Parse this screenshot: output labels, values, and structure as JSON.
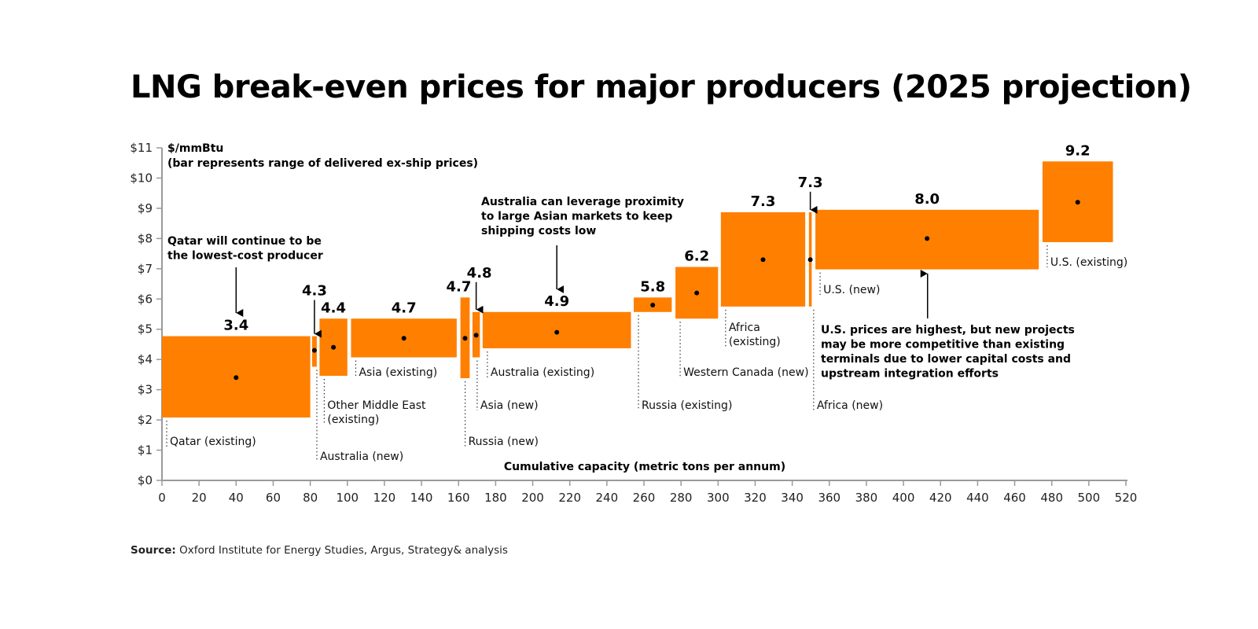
{
  "header": {
    "title": "LNG break-even prices for major producers (2025 projection)"
  },
  "footer": {
    "source_label": "Source:",
    "source_text": " Oxford Institute for Energy Studies, Argus, Strategy& analysis"
  },
  "chart_data": {
    "type": "bar",
    "subtype": "variable-width range bars (supply curve)",
    "title": "LNG break-even prices for major producers (2025 projection)",
    "ylabel": "$/mmBtu",
    "ylabel_note": "(bar represents range of delivered ex-ship prices)",
    "xlabel": "Cumulative capacity (metric tons per annum)",
    "xlim": [
      0,
      520
    ],
    "ylim": [
      0,
      11
    ],
    "xticks": [
      0,
      20,
      40,
      60,
      80,
      100,
      120,
      140,
      160,
      180,
      200,
      220,
      240,
      260,
      280,
      300,
      320,
      340,
      360,
      380,
      400,
      420,
      440,
      460,
      480,
      500,
      520
    ],
    "yticks": [
      0,
      1,
      2,
      3,
      4,
      5,
      6,
      7,
      8,
      9,
      10,
      11
    ],
    "ytick_labels": [
      "$0",
      "$1",
      "$2",
      "$3",
      "$4",
      "$5",
      "$6",
      "$7",
      "$8",
      "$9",
      "$10",
      "$11"
    ],
    "grid": false,
    "bar_color": "#FF7F00",
    "series": [
      {
        "name": "Qatar (existing)",
        "x_start": 0,
        "x_end": 80,
        "low": 2.08,
        "high": 4.77,
        "value": 3.4,
        "label": "3.4"
      },
      {
        "name": "Australia (new)",
        "x_start": 81,
        "x_end": 83.5,
        "low": 3.76,
        "high": 4.77,
        "value": 4.3,
        "label": "4.3"
      },
      {
        "name": "Other Middle East (existing)",
        "x_start": 85,
        "x_end": 100,
        "low": 3.46,
        "high": 5.35,
        "value": 4.4,
        "label": "4.4"
      },
      {
        "name": "Asia (existing)",
        "x_start": 102,
        "x_end": 159,
        "low": 4.07,
        "high": 5.35,
        "value": 4.7,
        "label": "4.7"
      },
      {
        "name": "Russia (new)",
        "x_start": 161,
        "x_end": 166,
        "low": 3.38,
        "high": 6.05,
        "value": 4.7,
        "label": "4.7"
      },
      {
        "name": "Asia (new)",
        "x_start": 167.5,
        "x_end": 171.5,
        "low": 4.07,
        "high": 5.57,
        "value": 4.8,
        "label": "4.8"
      },
      {
        "name": "Australia (existing)",
        "x_start": 173,
        "x_end": 253,
        "low": 4.37,
        "high": 5.57,
        "value": 4.9,
        "label": "4.9"
      },
      {
        "name": "Russia (existing)",
        "x_start": 254.5,
        "x_end": 275,
        "low": 5.57,
        "high": 6.05,
        "value": 5.8,
        "label": "5.8"
      },
      {
        "name": "Western Canada (new)",
        "x_start": 277,
        "x_end": 300,
        "low": 5.35,
        "high": 7.06,
        "value": 6.2,
        "label": "6.2"
      },
      {
        "name": "Africa (existing)",
        "x_start": 301.5,
        "x_end": 347,
        "low": 5.75,
        "high": 8.87,
        "value": 7.3,
        "label": "7.3"
      },
      {
        "name": "Africa (new)",
        "x_start": 349,
        "x_end": 350.5,
        "low": 5.75,
        "high": 8.87,
        "value": 7.3,
        "label": "7.3"
      },
      {
        "name": "U.S. (new)",
        "x_start": 352.5,
        "x_end": 473,
        "low": 6.98,
        "high": 8.95,
        "value": 8.0,
        "label": "8.0"
      },
      {
        "name": "U.S. (existing)",
        "x_start": 475,
        "x_end": 513,
        "low": 7.88,
        "high": 10.55,
        "value": 9.2,
        "label": "9.2"
      }
    ],
    "annotations": [
      {
        "id": "qatar",
        "lines": [
          "Qatar will continue to be",
          "the lowest-cost producer"
        ],
        "points_to": "Qatar (existing)"
      },
      {
        "id": "australia",
        "lines": [
          "Australia can leverage proximity",
          "to large Asian markets to keep",
          "shipping costs low"
        ],
        "points_to": "Australia (existing)"
      },
      {
        "id": "us",
        "lines": [
          "U.S. prices are highest, but new projects",
          "may be more competitive than existing",
          "terminals due to lower capital costs and",
          "upstream integration efforts"
        ],
        "points_to": "U.S. (new)"
      }
    ]
  }
}
